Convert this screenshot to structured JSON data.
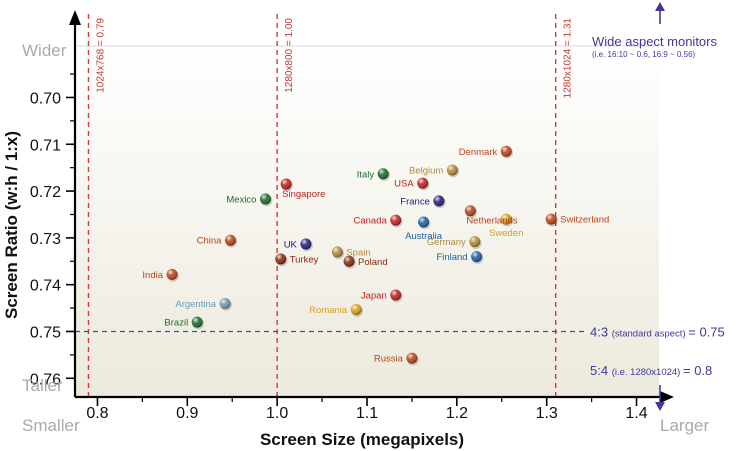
{
  "chart_data": {
    "type": "scatter",
    "xlabel": "Screen Size (megapixels)",
    "ylabel": "Screen Ratio (w:h / 1:x)",
    "x_ticks": [
      "0.8",
      "0.9",
      "1.0",
      "1.1",
      "1.2",
      "1.3",
      "1.4"
    ],
    "y_ticks": [
      "0.70",
      "0.71",
      "0.72",
      "0.73",
      "0.74",
      "0.75",
      "0.76"
    ],
    "xlim": [
      0.775,
      1.425
    ],
    "ylim": [
      0.689,
      0.764
    ],
    "grid": false,
    "corner_labels": {
      "top": "Wider",
      "bottom": "Taller",
      "left": "Smaller",
      "right": "Larger"
    },
    "reference_lines": [
      {
        "label": "1024x768 = 0.79",
        "axis": "x",
        "value": 0.79
      },
      {
        "label": "1280x800 = 1.00",
        "axis": "x",
        "value": 1.0
      },
      {
        "label": "1280x1024 = 1.31",
        "axis": "x",
        "value": 1.31
      },
      {
        "label": "4:3",
        "note": "(standard aspect)",
        "suffix": "= 0.75",
        "axis": "y",
        "value": 0.75
      }
    ],
    "annotations": {
      "wide_title": "Wide aspect monitors",
      "wide_note": "(i.e. 16:10 ~ 0.6, 16:9 ~ 0.56)",
      "five_four": "5:4",
      "five_four_note": "(i.e. 1280x1024)",
      "five_four_value": "= 0.8"
    },
    "points": [
      {
        "name": "Denmark",
        "x": 1.255,
        "y": 0.7115,
        "color": "#b8441c",
        "label_side": "left"
      },
      {
        "name": "Belgium",
        "x": 1.195,
        "y": 0.7155,
        "color": "#b08a3c",
        "label_side": "left"
      },
      {
        "name": "Italy",
        "x": 1.118,
        "y": 0.7163,
        "color": "#1c6b2e",
        "label_side": "left"
      },
      {
        "name": "USA",
        "x": 1.162,
        "y": 0.7183,
        "color": "#c02020",
        "label_side": "left"
      },
      {
        "name": "Singapore",
        "x": 1.01,
        "y": 0.7185,
        "color": "#c02020",
        "label_side": "below-right"
      },
      {
        "name": "France",
        "x": 1.18,
        "y": 0.7221,
        "color": "#25207a",
        "label_side": "left"
      },
      {
        "name": "Mexico",
        "x": 0.987,
        "y": 0.7217,
        "color": "#1c6b2e",
        "label_side": "left"
      },
      {
        "name": "Netherlands",
        "x": 1.215,
        "y": 0.7242,
        "color": "#b8441c",
        "label_side": "below-right"
      },
      {
        "name": "Canada",
        "x": 1.132,
        "y": 0.7262,
        "color": "#c02020",
        "label_side": "left"
      },
      {
        "name": "Australia",
        "x": 1.163,
        "y": 0.7266,
        "color": "#1f5fa0",
        "label_side": "below"
      },
      {
        "name": "Sweden",
        "x": 1.255,
        "y": 0.726,
        "color": "#d4a020",
        "label_side": "below"
      },
      {
        "name": "Switzerland",
        "x": 1.305,
        "y": 0.726,
        "color": "#b8441c",
        "label_side": "right"
      },
      {
        "name": "China",
        "x": 0.948,
        "y": 0.7305,
        "color": "#b8441c",
        "label_side": "left"
      },
      {
        "name": "Germany",
        "x": 1.22,
        "y": 0.7308,
        "color": "#b08a3c",
        "label_side": "left"
      },
      {
        "name": "UK",
        "x": 1.032,
        "y": 0.7313,
        "color": "#25207a",
        "label_side": "left"
      },
      {
        "name": "Spain",
        "x": 1.067,
        "y": 0.733,
        "color": "#b08a3c",
        "label_side": "right"
      },
      {
        "name": "Turkey",
        "x": 1.004,
        "y": 0.7345,
        "color": "#8a2a10",
        "label_side": "right"
      },
      {
        "name": "Poland",
        "x": 1.08,
        "y": 0.735,
        "color": "#8a2a10",
        "label_side": "right"
      },
      {
        "name": "Finland",
        "x": 1.222,
        "y": 0.734,
        "color": "#1f5fa0",
        "label_side": "left"
      },
      {
        "name": "India",
        "x": 0.883,
        "y": 0.7378,
        "color": "#b8441c",
        "label_side": "left"
      },
      {
        "name": "Japan",
        "x": 1.132,
        "y": 0.7422,
        "color": "#c02020",
        "label_side": "left"
      },
      {
        "name": "Argentina",
        "x": 0.942,
        "y": 0.744,
        "color": "#6a9ab8",
        "label_side": "left"
      },
      {
        "name": "Romania",
        "x": 1.088,
        "y": 0.7453,
        "color": "#d4a020",
        "label_side": "left"
      },
      {
        "name": "Brazil",
        "x": 0.911,
        "y": 0.748,
        "color": "#1c6b2e",
        "label_side": "left"
      },
      {
        "name": "Russia",
        "x": 1.15,
        "y": 0.7557,
        "color": "#b8441c",
        "label_side": "left"
      }
    ]
  }
}
